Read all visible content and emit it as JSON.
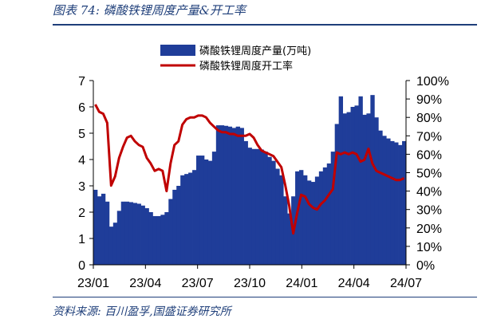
{
  "figure": {
    "title": "图表 74:  磷酸铁锂周度产量&开工率",
    "source": "资料来源:  百川盈孚,国盛证券研究所"
  },
  "colors": {
    "bars": "#1f3d99",
    "line": "#c00000",
    "accent": "#1f3f7a"
  },
  "chart_data": {
    "type": "bar",
    "title": "",
    "grid": false,
    "legend_position": "top",
    "x_tick_labels": [
      "23/01",
      "23/04",
      "23/07",
      "23/10",
      "24/01",
      "24/04",
      "24/07"
    ],
    "y_left": {
      "label": "",
      "ylim": [
        0,
        7
      ],
      "ticks": [
        "0",
        "1",
        "2",
        "3",
        "4",
        "5",
        "6",
        "7"
      ]
    },
    "y_right": {
      "label": "",
      "ylim": [
        0,
        100
      ],
      "ticks": [
        "0%",
        "10%",
        "20%",
        "30%",
        "40%",
        "50%",
        "60%",
        "70%",
        "80%",
        "90%",
        "100%"
      ]
    },
    "series": [
      {
        "name": "磷酸铁锂周度产量(万吨)",
        "type": "bar",
        "axis": "left",
        "values": [
          2.85,
          2.6,
          2.7,
          2.4,
          1.45,
          1.6,
          2.05,
          2.4,
          2.4,
          2.38,
          2.35,
          2.32,
          2.25,
          2.15,
          2.0,
          1.85,
          1.85,
          1.9,
          2.0,
          2.5,
          2.85,
          3.0,
          3.4,
          3.45,
          3.5,
          3.6,
          4.15,
          4.15,
          4.0,
          3.95,
          4.3,
          5.3,
          5.3,
          5.28,
          5.25,
          5.2,
          5.25,
          5.2,
          4.7,
          4.45,
          4.4,
          4.4,
          4.38,
          4.3,
          4.1,
          3.95,
          3.65,
          3.4,
          2.6,
          1.95,
          2.6,
          3.55,
          3.6,
          3.4,
          3.2,
          3.15,
          3.35,
          3.55,
          3.7,
          3.85,
          4.3,
          5.35,
          6.4,
          5.75,
          5.8,
          6.0,
          6.05,
          6.4,
          5.7,
          5.75,
          6.45,
          5.6,
          5.1,
          4.9,
          4.8,
          4.7,
          4.65,
          4.55,
          4.7
        ]
      },
      {
        "name": "磷酸铁锂周度开工率",
        "type": "line",
        "axis": "right",
        "values": [
          87,
          83,
          82,
          77,
          43,
          48,
          58,
          64,
          69,
          70,
          67,
          65,
          64,
          58,
          55,
          51,
          52,
          51,
          40,
          55,
          65,
          67,
          76,
          79,
          80,
          80,
          81,
          81,
          80,
          77,
          75,
          73,
          72,
          72,
          71,
          71,
          70,
          70,
          70,
          71,
          69,
          65,
          62,
          61,
          60,
          59,
          56,
          53,
          43,
          32,
          17,
          28,
          38,
          37,
          33,
          31,
          30,
          33,
          35,
          38,
          41,
          61,
          60,
          61,
          60,
          61,
          60,
          56,
          57,
          63,
          55,
          51,
          50,
          49,
          48,
          47,
          46,
          46,
          47
        ]
      }
    ]
  }
}
